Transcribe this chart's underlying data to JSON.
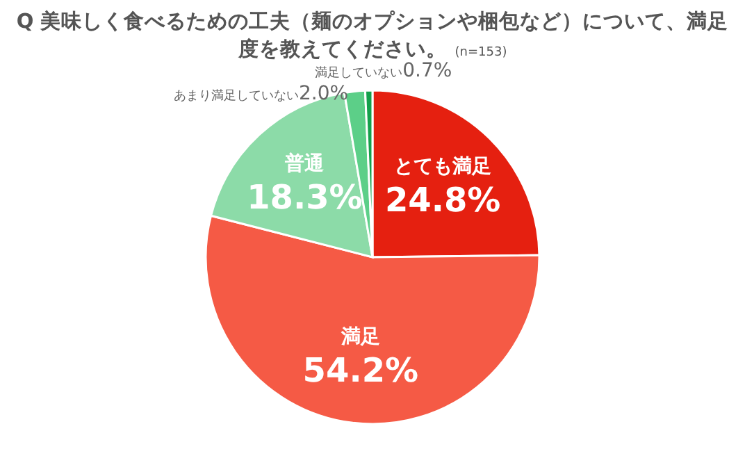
{
  "chart_data": {
    "type": "pie",
    "title": "Q 美味しく食べるための工夫（麺のオプションや梱包など）について、満足度を教えてください。",
    "subtitle": "(n=153)",
    "categories": [
      "とても満足",
      "満足",
      "普通",
      "あまり満足していない",
      "満足していない"
    ],
    "values": [
      24.8,
      54.2,
      18.3,
      2.0,
      0.7
    ],
    "colors": [
      "#e52010",
      "#f55a45",
      "#8cdba8",
      "#5ccf88",
      "#14a04c"
    ],
    "value_labels": [
      "24.8%",
      "54.2%",
      "18.3%",
      "2.0%",
      "0.7%"
    ]
  }
}
